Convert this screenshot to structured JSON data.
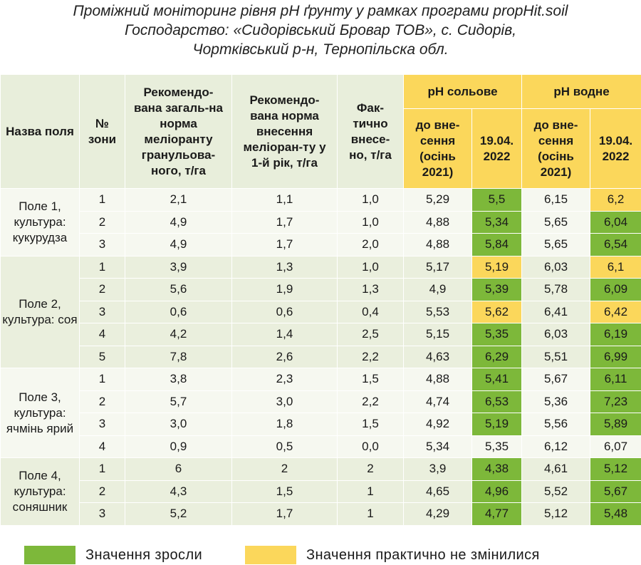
{
  "caption": {
    "line1": "Проміжний моніторинг рівня pH ґрунту у рамках програми propHit.soil",
    "line2": "Господарство: «Сидорівський Бровар ТОВ», с. Сидорів,",
    "line3": "Чортківський р-н, Тернопільска обл."
  },
  "headers": {
    "field": "Назва поля",
    "zone": "№ зони",
    "total_norm": "Рекомендо-вана загаль-на норма меліоранту гранульова-ного, т/га",
    "first_year_norm": "Рекомендо-вана норма внесення меліоран-ту у 1-й рік, т/га",
    "actual": "Фак-тично внесе-но, т/га",
    "ph_salt": "pH сольове",
    "ph_water": "pH водне",
    "before": "до вне-сення (осінь 2021)",
    "date": "19.04. 2022"
  },
  "colors": {
    "increased": "#7db83a",
    "unchanged": "#fbd75b"
  },
  "fields": [
    {
      "name": "Поле 1, культура: кукурудза",
      "rows": [
        {
          "zone": "1",
          "total": "2,1",
          "first": "1,1",
          "actual": "1,0",
          "salt_before": "5,29",
          "salt_after": "5,5",
          "salt_status": "green",
          "water_before": "6,15",
          "water_after": "6,2",
          "water_status": "yellow"
        },
        {
          "zone": "2",
          "total": "4,9",
          "first": "1,7",
          "actual": "1,0",
          "salt_before": "4,88",
          "salt_after": "5,34",
          "salt_status": "green",
          "water_before": "5,65",
          "water_after": "6,04",
          "water_status": "green"
        },
        {
          "zone": "3",
          "total": "4,9",
          "first": "1,7",
          "actual": "2,0",
          "salt_before": "4,88",
          "salt_after": "5,84",
          "salt_status": "green",
          "water_before": "5,65",
          "water_after": "6,54",
          "water_status": "green"
        }
      ]
    },
    {
      "name": "Поле 2, культура: соя",
      "rows": [
        {
          "zone": "1",
          "total": "3,9",
          "first": "1,3",
          "actual": "1,0",
          "salt_before": "5,17",
          "salt_after": "5,19",
          "salt_status": "yellow",
          "water_before": "6,03",
          "water_after": "6,1",
          "water_status": "yellow"
        },
        {
          "zone": "2",
          "total": "5,6",
          "first": "1,9",
          "actual": "1,3",
          "salt_before": "4,9",
          "salt_after": "5,39",
          "salt_status": "green",
          "water_before": "5,78",
          "water_after": "6,09",
          "water_status": "green"
        },
        {
          "zone": "3",
          "total": "0,6",
          "first": "0,6",
          "actual": "0,4",
          "salt_before": "5,53",
          "salt_after": "5,62",
          "salt_status": "yellow",
          "water_before": "6,41",
          "water_after": "6,42",
          "water_status": "yellow"
        },
        {
          "zone": "4",
          "total": "4,2",
          "first": "1,4",
          "actual": "2,5",
          "salt_before": "5,15",
          "salt_after": "5,35",
          "salt_status": "green",
          "water_before": "6,03",
          "water_after": "6,19",
          "water_status": "green"
        },
        {
          "zone": "5",
          "total": "7,8",
          "first": "2,6",
          "actual": "2,2",
          "salt_before": "4,63",
          "salt_after": "6,29",
          "salt_status": "green",
          "water_before": "5,51",
          "water_after": "6,99",
          "water_status": "green"
        }
      ]
    },
    {
      "name": "Поле 3, культура: ячмінь ярий",
      "rows": [
        {
          "zone": "1",
          "total": "3,8",
          "first": "2,3",
          "actual": "1,5",
          "salt_before": "4,88",
          "salt_after": "5,41",
          "salt_status": "green",
          "water_before": "5,67",
          "water_after": "6,11",
          "water_status": "green"
        },
        {
          "zone": "2",
          "total": "5,7",
          "first": "3,0",
          "actual": "2,2",
          "salt_before": "4,74",
          "salt_after": "6,53",
          "salt_status": "green",
          "water_before": "5,36",
          "water_after": "7,23",
          "water_status": "green"
        },
        {
          "zone": "3",
          "total": "3,0",
          "first": "1,8",
          "actual": "1,5",
          "salt_before": "4,92",
          "salt_after": "5,19",
          "salt_status": "green",
          "water_before": "5,56",
          "water_after": "5,89",
          "water_status": "green"
        },
        {
          "zone": "4",
          "total": "0,9",
          "first": "0,5",
          "actual": "0,0",
          "salt_before": "5,34",
          "salt_after": "5,35",
          "salt_status": "",
          "water_before": "6,12",
          "water_after": "6,07",
          "water_status": ""
        }
      ]
    },
    {
      "name": "Поле 4, культура: соняшник",
      "rows": [
        {
          "zone": "1",
          "total": "6",
          "first": "2",
          "actual": "2",
          "salt_before": "3,9",
          "salt_after": "4,38",
          "salt_status": "green",
          "water_before": "4,61",
          "water_after": "5,12",
          "water_status": "green"
        },
        {
          "zone": "2",
          "total": "4,3",
          "first": "1,5",
          "actual": "1",
          "salt_before": "4,65",
          "salt_after": "4,96",
          "salt_status": "green",
          "water_before": "5,52",
          "water_after": "5,67",
          "water_status": "green"
        },
        {
          "zone": "3",
          "total": "5,2",
          "first": "1,7",
          "actual": "1",
          "salt_before": "4,29",
          "salt_after": "4,77",
          "salt_status": "green",
          "water_before": "5,12",
          "water_after": "5,48",
          "water_status": "green"
        }
      ]
    }
  ],
  "legend": {
    "increased_label": "Значення зросли",
    "unchanged_label": "Значення практично не змінилися"
  }
}
